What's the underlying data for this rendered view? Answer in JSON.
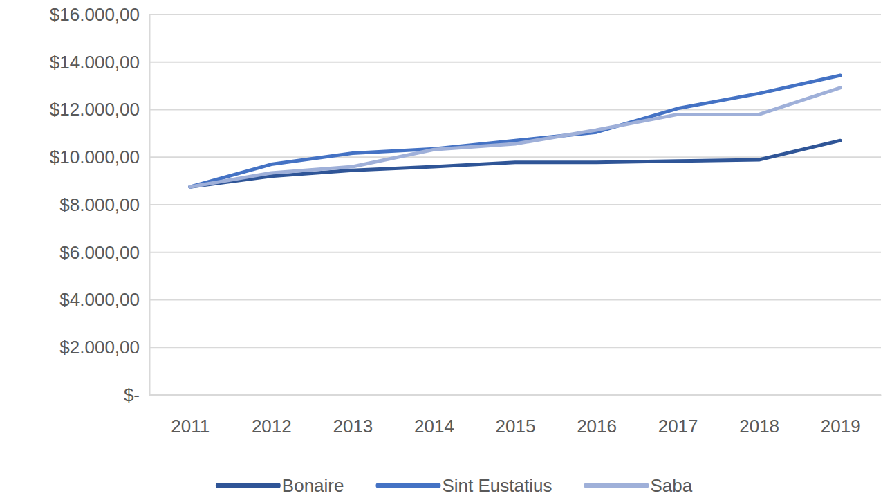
{
  "chart_data": {
    "type": "line",
    "categories": [
      "2011",
      "2012",
      "2013",
      "2014",
      "2015",
      "2016",
      "2017",
      "2018",
      "2019"
    ],
    "series": [
      {
        "name": "Bonaire",
        "color": "#2f5597",
        "values": [
          8750,
          9200,
          9450,
          9600,
          9780,
          9780,
          9840,
          9890,
          10700
        ]
      },
      {
        "name": "Sint Eustatius",
        "color": "#4472c4",
        "values": [
          8750,
          9700,
          10170,
          10350,
          10700,
          11050,
          12050,
          12680,
          13440
        ]
      },
      {
        "name": "Saba",
        "color": "#9fb0d9",
        "values": [
          8750,
          9340,
          9600,
          10320,
          10560,
          11140,
          11800,
          11800,
          12920
        ]
      }
    ],
    "ylim": [
      0,
      16000
    ],
    "yticks": [
      {
        "value": 0,
        "label": "$-"
      },
      {
        "value": 2000,
        "label": "$2.000,00"
      },
      {
        "value": 4000,
        "label": "$4.000,00"
      },
      {
        "value": 6000,
        "label": "$6.000,00"
      },
      {
        "value": 8000,
        "label": "$8.000,00"
      },
      {
        "value": 10000,
        "label": "$10.000,00"
      },
      {
        "value": 12000,
        "label": "$12.000,00"
      },
      {
        "value": 14000,
        "label": "$14.000,00"
      },
      {
        "value": 16000,
        "label": "$16.000,00"
      }
    ],
    "grid": true,
    "legend": "bottom"
  }
}
